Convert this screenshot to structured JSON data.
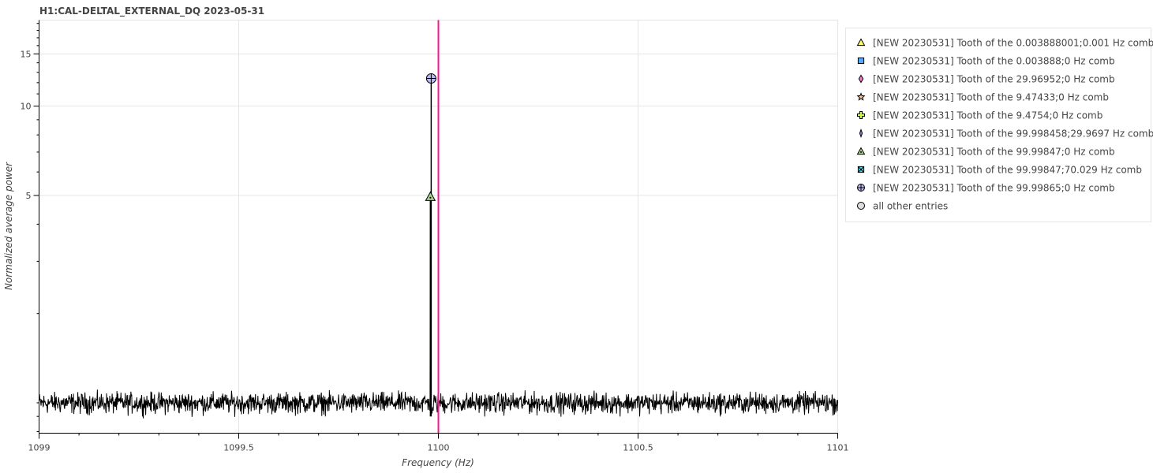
{
  "chart_data": {
    "type": "line",
    "title": "H1:CAL-DELTAL_EXTERNAL_DQ 2023-05-31",
    "xlabel": "Frequency (Hz)",
    "ylabel": "Normalized average power",
    "xlim": [
      1099,
      1101
    ],
    "ylim": [
      0.79,
      19.5
    ],
    "y_scale": "log",
    "grid": true,
    "legend_position": "outside-right",
    "x_ticks": [
      {
        "value": 1099,
        "label": "1099"
      },
      {
        "value": 1099.5,
        "label": "1099.5"
      },
      {
        "value": 1100,
        "label": "1100"
      },
      {
        "value": 1100.5,
        "label": "1100.5"
      },
      {
        "value": 1101,
        "label": "1101"
      }
    ],
    "y_ticks": [
      {
        "value": 5,
        "label": "5"
      },
      {
        "value": 10,
        "label": "10"
      },
      {
        "value": 15,
        "label": "15"
      }
    ],
    "spectrum": {
      "color": "#000000",
      "baseline": 1.0,
      "noise_amplitude": 0.05,
      "peaks": [
        {
          "x": 1099.982,
          "y": 12.4
        },
        {
          "x": 1099.98,
          "y": 4.95
        }
      ]
    },
    "vertical_line": {
      "x": 1100,
      "color": "#ff1493"
    },
    "markers": [
      {
        "x": 1099.982,
        "y": 12.4,
        "symbol": "circle-cross",
        "fill": "#b8b8f0"
      },
      {
        "x": 1099.98,
        "y": 4.95,
        "symbol": "triangle-dot",
        "fill": "#a8d08d"
      }
    ],
    "legend": [
      {
        "label": "[NEW 20230531] Tooth of the 0.003888001;0.001 Hz comb",
        "symbol": "triangle",
        "fill": "#ffff66"
      },
      {
        "label": "[NEW 20230531] Tooth of the 0.003888;0 Hz comb",
        "symbol": "square",
        "fill": "#55aaff"
      },
      {
        "label": "[NEW 20230531] Tooth of the 29.96952;0 Hz comb",
        "symbol": "diamond",
        "fill": "#ff77dd"
      },
      {
        "label": "[NEW 20230531] Tooth of the 9.47433;0 Hz comb",
        "symbol": "star",
        "fill": "#f4c4a0"
      },
      {
        "label": "[NEW 20230531] Tooth of the 9.4754;0 Hz comb",
        "symbol": "cross",
        "fill": "#ccff44"
      },
      {
        "label": "[NEW 20230531] Tooth of the 99.998458;29.9697 Hz comb",
        "symbol": "thin-diamond",
        "fill": "#8888ff"
      },
      {
        "label": "[NEW 20230531] Tooth of the 99.99847;0 Hz comb",
        "symbol": "triangle-dot",
        "fill": "#a8d08d"
      },
      {
        "label": "[NEW 20230531] Tooth of the 99.99847;70.029 Hz comb",
        "symbol": "square-x",
        "fill": "#44ddee"
      },
      {
        "label": "[NEW 20230531] Tooth of the 99.99865;0 Hz comb",
        "symbol": "circle-cross",
        "fill": "#b8b8f0"
      },
      {
        "label": "all other entries",
        "symbol": "circle",
        "fill": "#dddddd"
      }
    ]
  }
}
